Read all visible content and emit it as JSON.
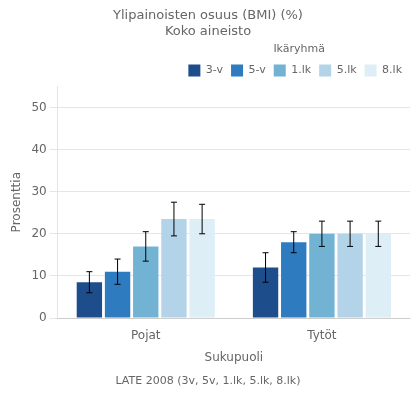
{
  "chart_data": {
    "type": "bar",
    "title": "Ylipainoisten osuus (BMI) (%)",
    "subtitle": "Koko aineisto",
    "caption": "LATE 2008 (3v, 5v, 1.lk, 5.lk, 8.lk)",
    "xlabel": "Sukupuoli",
    "ylabel": "Prosenttia",
    "legend_title": "Ikäryhmä",
    "categories": [
      "Pojat",
      "Tytöt"
    ],
    "series": [
      {
        "name": "3-v",
        "color": "#1e4d8c",
        "values": [
          8.5,
          12.0
        ],
        "errors": [
          2.5,
          3.5
        ]
      },
      {
        "name": "5-v",
        "color": "#2e7bbf",
        "values": [
          11.0,
          18.0
        ],
        "errors": [
          3.0,
          2.5
        ]
      },
      {
        "name": "1.lk",
        "color": "#72b3d4",
        "values": [
          17.0,
          20.0
        ],
        "errors": [
          3.5,
          3.0
        ]
      },
      {
        "name": "5.lk",
        "color": "#b3d4e8",
        "values": [
          23.5,
          20.0
        ],
        "errors": [
          4.0,
          3.0
        ]
      },
      {
        "name": "8.lk",
        "color": "#deeef7",
        "values": [
          23.5,
          20.0
        ],
        "errors": [
          3.5,
          3.0
        ]
      }
    ],
    "ylim": [
      0,
      55
    ],
    "yticks": [
      0,
      10,
      20,
      30,
      40,
      50
    ],
    "grid": true,
    "legend": "upper right"
  }
}
